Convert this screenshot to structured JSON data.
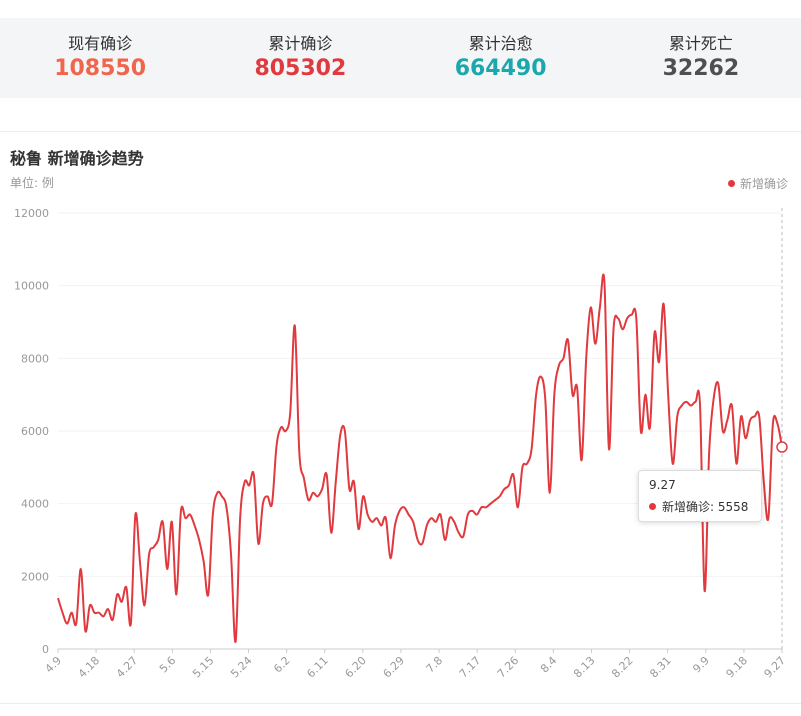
{
  "stats": [
    {
      "label": "现有确诊",
      "value": "108550",
      "color": "#f0664c"
    },
    {
      "label": "累计确诊",
      "value": "805302",
      "color": "#e0393e"
    },
    {
      "label": "累计治愈",
      "value": "664490",
      "color": "#1aa7ad"
    },
    {
      "label": "累计死亡",
      "value": "32262",
      "color": "#4f4f4f"
    }
  ],
  "chart_data": {
    "type": "line",
    "title": "秘鲁 新增确诊趋势",
    "unit_label": "单位: 例",
    "xlabel": "",
    "ylabel": "",
    "ylim": [
      0,
      12000
    ],
    "y_ticks": [
      0,
      2000,
      4000,
      6000,
      8000,
      10000,
      12000
    ],
    "x_ticks": [
      "4.9",
      "4.18",
      "4.27",
      "5.6",
      "5.15",
      "5.24",
      "6.2",
      "6.11",
      "6.20",
      "6.29",
      "7.8",
      "7.17",
      "7.26",
      "8.4",
      "8.13",
      "8.22",
      "8.31",
      "9.9",
      "9.18",
      "9.27"
    ],
    "grid": true,
    "legend_position": "top-right",
    "color": "#e0393e",
    "series": [
      {
        "name": "新增确诊",
        "values": [
          1400,
          1000,
          700,
          1000,
          700,
          2200,
          500,
          1200,
          1000,
          1000,
          900,
          1100,
          800,
          1500,
          1300,
          1700,
          700,
          3700,
          2400,
          1200,
          2600,
          2800,
          3000,
          3500,
          2200,
          3500,
          1500,
          3800,
          3600,
          3700,
          3400,
          3000,
          2400,
          1500,
          3700,
          4300,
          4200,
          3900,
          2600,
          200,
          3600,
          4600,
          4500,
          4800,
          2900,
          4000,
          4200,
          4000,
          5600,
          6100,
          6000,
          6500,
          8900,
          5400,
          4700,
          4100,
          4300,
          4200,
          4400,
          4800,
          3200,
          4600,
          5900,
          6000,
          4400,
          4600,
          3300,
          4200,
          3700,
          3500,
          3600,
          3400,
          3600,
          2500,
          3400,
          3800,
          3900,
          3700,
          3500,
          3000,
          2900,
          3400,
          3600,
          3500,
          3700,
          3000,
          3600,
          3500,
          3200,
          3100,
          3700,
          3800,
          3700,
          3900,
          3900,
          4000,
          4100,
          4200,
          4400,
          4500,
          4800,
          3900,
          5000,
          5100,
          5500,
          7000,
          7500,
          6900,
          4300,
          7000,
          7800,
          8000,
          8500,
          7000,
          7200,
          5200,
          8000,
          9400,
          8400,
          9400,
          10100,
          5500,
          8800,
          9100,
          8800,
          9100,
          9200,
          9100,
          6000,
          7000,
          6100,
          8700,
          7900,
          9500,
          7000,
          5100,
          6400,
          6700,
          6800,
          6700,
          6800,
          6700,
          1600,
          5400,
          6900,
          7300,
          6000,
          6300,
          6700,
          5100,
          6400,
          5800,
          6300,
          6400,
          6400,
          4600,
          3600,
          6200,
          6200,
          5558
        ]
      }
    ],
    "highlight": {
      "date": "9.27",
      "series_label": "新增确诊",
      "value": 5558
    }
  }
}
